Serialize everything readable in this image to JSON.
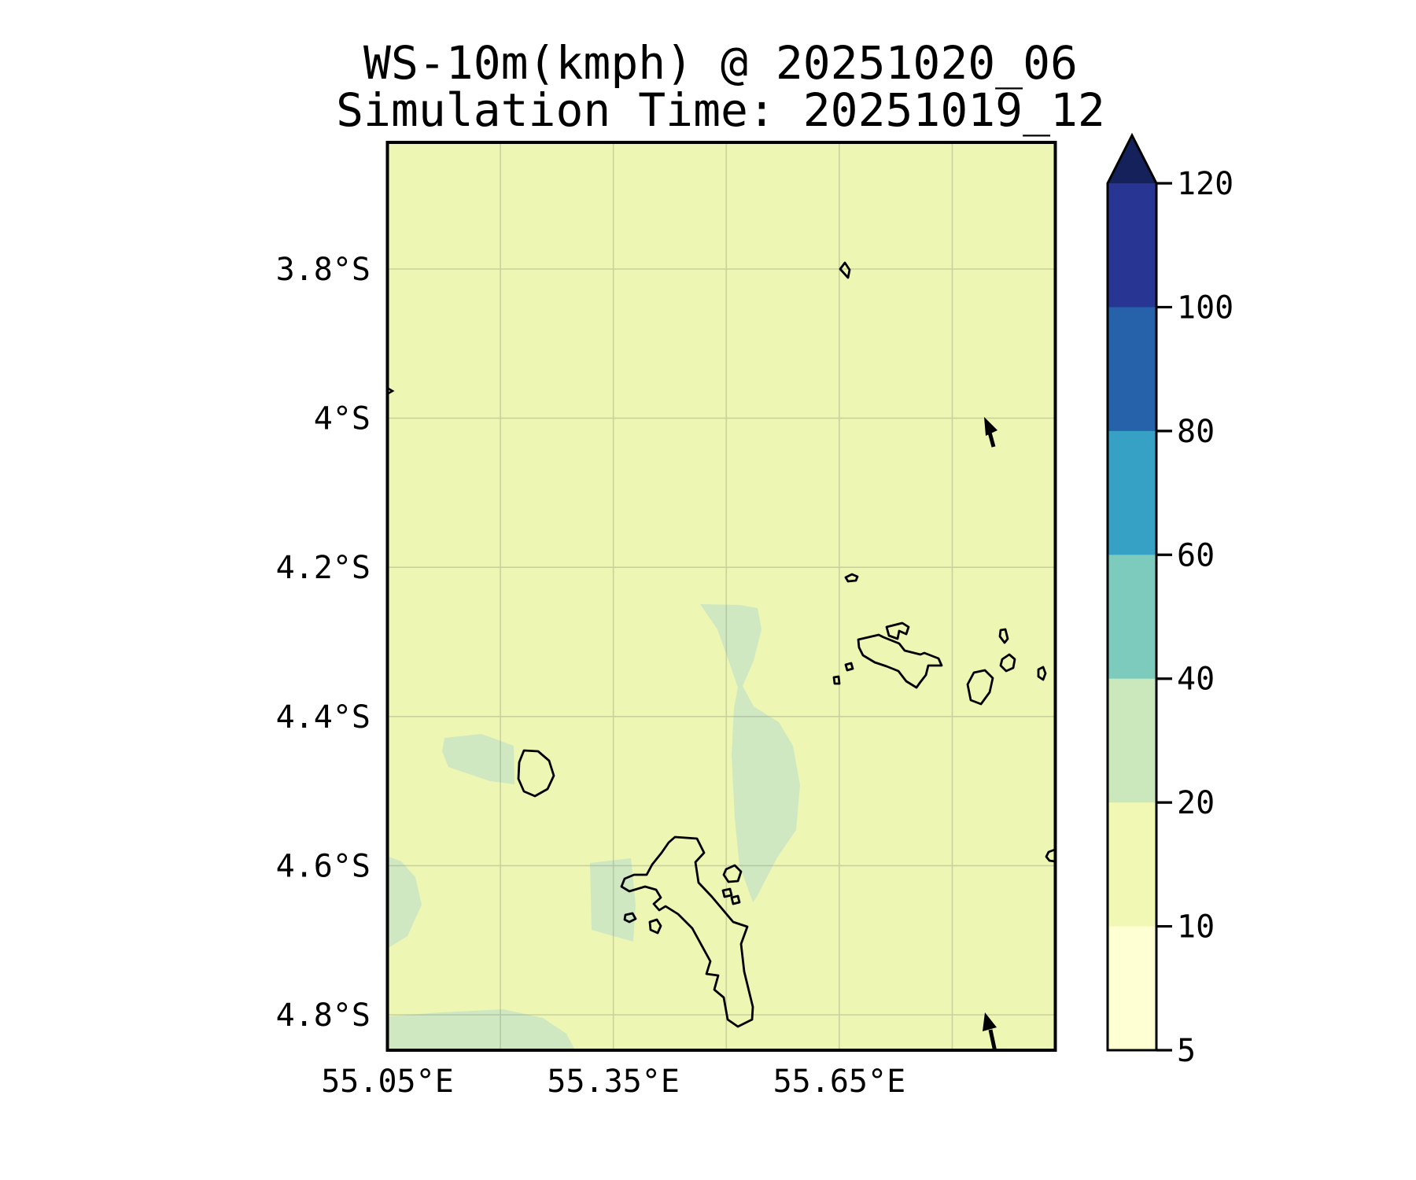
{
  "title": {
    "line1": "WS-10m(kmph) @ 20251020_06",
    "line2": "Simulation Time: 20251019_12"
  },
  "axes": {
    "x_ticks": [
      {
        "label": "55.05°E",
        "lon": 55.05
      },
      {
        "label": "55.35°E",
        "lon": 55.35
      },
      {
        "label": "55.65°E",
        "lon": 55.65
      }
    ],
    "y_ticks": [
      {
        "label": "3.8°S",
        "lat": 3.8
      },
      {
        "label": "4°S",
        "lat": 4.0
      },
      {
        "label": "4.2°S",
        "lat": 4.2
      },
      {
        "label": "4.4°S",
        "lat": 4.4
      },
      {
        "label": "4.6°S",
        "lat": 4.6
      },
      {
        "label": "4.8°S",
        "lat": 4.8
      }
    ],
    "x_gridline_lons": [
      55.2,
      55.35,
      55.5,
      55.65,
      55.8
    ],
    "y_gridline_lats": [
      3.8,
      4.0,
      4.2,
      4.4,
      4.6,
      4.8
    ]
  },
  "colorbar": {
    "tick_labels": [
      "120",
      "100",
      "80",
      "60",
      "40",
      "20",
      "10",
      "5"
    ],
    "segment_colors_top_to_bottom": [
      "#283592",
      "#2562a9",
      "#37a1c5",
      "#7dcbbc",
      "#cbe8bd",
      "#f0f8b4",
      "#feffd2"
    ],
    "extend_triangle_color": "#15215a",
    "extend": "max"
  },
  "colors": {
    "page_background": "#ffffff",
    "map_background": "#edf6b3",
    "patch_fill": "#cfe8c1",
    "coastline": "#000000",
    "gridline": "#6f7565",
    "border": "#000000",
    "arrow": "#000000",
    "text": "#000000"
  },
  "map": {
    "patches": {
      "west-of-silhouette": [
        [
          565,
          938
        ],
        [
          612,
          933
        ],
        [
          653,
          948
        ],
        [
          654,
          997
        ],
        [
          623,
          993
        ],
        [
          570,
          975
        ],
        [
          562,
          955
        ]
      ],
      "left-edge-4.6s": [
        [
          492,
          1088
        ],
        [
          510,
          1095
        ],
        [
          528,
          1115
        ],
        [
          536,
          1150
        ],
        [
          518,
          1190
        ],
        [
          495,
          1204
        ],
        [
          492,
          1204
        ]
      ],
      "south-edge-strip": [
        [
          492,
          1292
        ],
        [
          560,
          1287
        ],
        [
          640,
          1283
        ],
        [
          690,
          1294
        ],
        [
          720,
          1314
        ],
        [
          731,
          1335
        ],
        [
          492,
          1335
        ]
      ],
      "west-of-mahe": [
        [
          750,
          1097
        ],
        [
          802,
          1091
        ],
        [
          808,
          1150
        ],
        [
          805,
          1197
        ],
        [
          752,
          1182
        ]
      ],
      "east-of-mahe-band": [
        [
          890,
          768
        ],
        [
          940,
          769
        ],
        [
          963,
          773
        ],
        [
          968,
          800
        ],
        [
          958,
          840
        ],
        [
          944,
          872
        ],
        [
          958,
          898
        ],
        [
          990,
          918
        ],
        [
          1008,
          948
        ],
        [
          1017,
          998
        ],
        [
          1012,
          1055
        ],
        [
          988,
          1090
        ],
        [
          962,
          1140
        ],
        [
          957,
          1147
        ],
        [
          940,
          1100
        ],
        [
          934,
          1040
        ],
        [
          930,
          960
        ],
        [
          933,
          900
        ],
        [
          938,
          874
        ],
        [
          928,
          845
        ],
        [
          912,
          800
        ]
      ]
    },
    "coastlines": {
      "silhouette": [
        [
          666,
          954
        ],
        [
          684,
          955
        ],
        [
          698,
          967
        ],
        [
          704,
          986
        ],
        [
          696,
          1003
        ],
        [
          680,
          1012
        ],
        [
          666,
          1006
        ],
        [
          659,
          990
        ],
        [
          660,
          969
        ]
      ],
      "mahe": [
        [
          858,
          1064
        ],
        [
          886,
          1066
        ],
        [
          895,
          1084
        ],
        [
          884,
          1096
        ],
        [
          888,
          1122
        ],
        [
          905,
          1140
        ],
        [
          932,
          1172
        ],
        [
          950,
          1178
        ],
        [
          942,
          1200
        ],
        [
          946,
          1235
        ],
        [
          957,
          1280
        ],
        [
          956,
          1296
        ],
        [
          938,
          1305
        ],
        [
          925,
          1296
        ],
        [
          920,
          1268
        ],
        [
          908,
          1258
        ],
        [
          913,
          1240
        ],
        [
          898,
          1238
        ],
        [
          903,
          1222
        ],
        [
          880,
          1180
        ],
        [
          862,
          1162
        ],
        [
          846,
          1152
        ],
        [
          838,
          1157
        ],
        [
          831,
          1149
        ],
        [
          840,
          1141
        ],
        [
          834,
          1131
        ],
        [
          820,
          1127
        ],
        [
          800,
          1133
        ],
        [
          790,
          1127
        ],
        [
          794,
          1117
        ],
        [
          806,
          1112
        ],
        [
          822,
          1112
        ],
        [
          829,
          1099
        ],
        [
          841,
          1084
        ],
        [
          850,
          1071
        ]
      ],
      "islet-w-mahe-1": [
        [
          795,
          1163
        ],
        [
          804,
          1161
        ],
        [
          808,
          1168
        ],
        [
          800,
          1172
        ],
        [
          794,
          1169
        ]
      ],
      "islet-w-mahe-2": [
        [
          826,
          1172
        ],
        [
          835,
          1169
        ],
        [
          840,
          1177
        ],
        [
          836,
          1186
        ],
        [
          827,
          1182
        ]
      ],
      "ste-anne": [
        [
          923,
          1105
        ],
        [
          934,
          1100
        ],
        [
          942,
          1108
        ],
        [
          938,
          1120
        ],
        [
          926,
          1121
        ],
        [
          920,
          1112
        ]
      ],
      "islet-e-mahe-1": [
        [
          919,
          1132
        ],
        [
          928,
          1130
        ],
        [
          930,
          1138
        ],
        [
          921,
          1140
        ]
      ],
      "islet-e-mahe-2": [
        [
          930,
          1141
        ],
        [
          938,
          1139
        ],
        [
          940,
          1147
        ],
        [
          932,
          1149
        ]
      ],
      "praslin": [
        [
          1091,
          813
        ],
        [
          1117,
          807
        ],
        [
          1123,
          810
        ],
        [
          1143,
          818
        ],
        [
          1150,
          827
        ],
        [
          1170,
          832
        ],
        [
          1175,
          830
        ],
        [
          1193,
          837
        ],
        [
          1197,
          846
        ],
        [
          1180,
          846
        ],
        [
          1177,
          858
        ],
        [
          1170,
          867
        ],
        [
          1165,
          874
        ],
        [
          1152,
          866
        ],
        [
          1142,
          853
        ],
        [
          1127,
          847
        ],
        [
          1112,
          842
        ],
        [
          1097,
          833
        ],
        [
          1092,
          823
        ]
      ],
      "curieuse": [
        [
          1127,
          797
        ],
        [
          1147,
          792
        ],
        [
          1155,
          797
        ],
        [
          1152,
          806
        ],
        [
          1143,
          802
        ],
        [
          1141,
          812
        ],
        [
          1130,
          808
        ]
      ],
      "islet-w-praslin": [
        [
          1075,
          845
        ],
        [
          1082,
          843
        ],
        [
          1084,
          850
        ],
        [
          1077,
          852
        ]
      ],
      "islet-sw-praslin": [
        [
          1060,
          861
        ],
        [
          1066,
          860
        ],
        [
          1067,
          869
        ],
        [
          1061,
          869
        ]
      ],
      "islet-n-praslin": [
        [
          1075,
          734
        ],
        [
          1083,
          730
        ],
        [
          1090,
          733
        ],
        [
          1088,
          738
        ],
        [
          1078,
          739
        ]
      ],
      "islet-north-3.8s": [
        [
          1074,
          334
        ],
        [
          1080,
          343
        ],
        [
          1078,
          353
        ],
        [
          1068,
          342
        ]
      ],
      "felicite": [
        [
          1272,
          801
        ],
        [
          1278,
          800
        ],
        [
          1281,
          812
        ],
        [
          1277,
          817
        ],
        [
          1271,
          809
        ]
      ],
      "islet-oval-e": [
        [
          1274,
          838
        ],
        [
          1283,
          832
        ],
        [
          1290,
          838
        ],
        [
          1288,
          849
        ],
        [
          1279,
          853
        ],
        [
          1272,
          846
        ]
      ],
      "la-digue": [
        [
          1238,
          855
        ],
        [
          1252,
          852
        ],
        [
          1262,
          862
        ],
        [
          1258,
          880
        ],
        [
          1247,
          895
        ],
        [
          1234,
          890
        ],
        [
          1230,
          870
        ]
      ],
      "islet-right-1": [
        [
          1320,
          851
        ],
        [
          1326,
          848
        ],
        [
          1329,
          856
        ],
        [
          1326,
          864
        ],
        [
          1320,
          860
        ]
      ],
      "islet-right-border": [
        [
          1341,
          1080
        ],
        [
          1333,
          1083
        ],
        [
          1330,
          1089
        ],
        [
          1334,
          1094
        ],
        [
          1341,
          1095
        ]
      ]
    },
    "arrows": [
      {
        "name": "wind-vector-ne",
        "shaft": [
          [
            1263,
            568
          ],
          [
            1257,
            546
          ]
        ],
        "head": [
          [
            1251,
            530
          ],
          [
            1268,
            547
          ],
          [
            1253,
            554
          ]
        ]
      },
      {
        "name": "wind-vector-se",
        "shaft": [
          [
            1265,
            1337
          ],
          [
            1259,
            1309
          ]
        ],
        "head": [
          [
            1252,
            1287
          ],
          [
            1267,
            1306
          ],
          [
            1249,
            1311
          ]
        ]
      },
      {
        "name": "wind-vector-west-edge",
        "chevron": [
          [
            492,
            493
          ],
          [
            499,
            497
          ],
          [
            492,
            501
          ]
        ]
      }
    ]
  },
  "chart_data": {
    "type": "heatmap",
    "subtype": "filled_contour_map",
    "title": "WS-10m(kmph) @ 20251020_06",
    "subtitle": "Simulation Time: 20251019_12",
    "variable": "10 m wind speed",
    "units": "kmph",
    "valid_time": "20251020_06",
    "simulation_time": "20251019_12",
    "levels": [
      5,
      10,
      20,
      40,
      60,
      80,
      100,
      120
    ],
    "colorbar_extend": "max",
    "level_colors_low_to_high": [
      "#feffd2",
      "#f0f8b4",
      "#cbe8bd",
      "#7dcbbc",
      "#37a1c5",
      "#2562a9",
      "#283592"
    ],
    "x_tick_labels": [
      "55.05°E",
      "55.35°E",
      "55.65°E"
    ],
    "y_tick_labels": [
      "3.8°S",
      "4°S",
      "4.2°S",
      "4.4°S",
      "4.6°S",
      "4.8°S"
    ],
    "lon_range": [
      55.05,
      55.93
    ],
    "lat_range_south": [
      3.63,
      4.85
    ],
    "grid": true,
    "field_description": "Wind speed is in the 10-20 kmph band over nearly the whole domain, with 20-40 kmph patches west of Silhouette island, on the west edge near 4.6S, along the south edge, just west of Mahe, and in an elongated north-south band east of Mahe. Seychelles coastlines (Mahe, Silhouette, Praslin, La Digue, Curieuse, Felicite and nearby islets) are overlaid, plus two northward-pointing wind vectors near 55.85E at about 4.17S and 4.83S."
  }
}
